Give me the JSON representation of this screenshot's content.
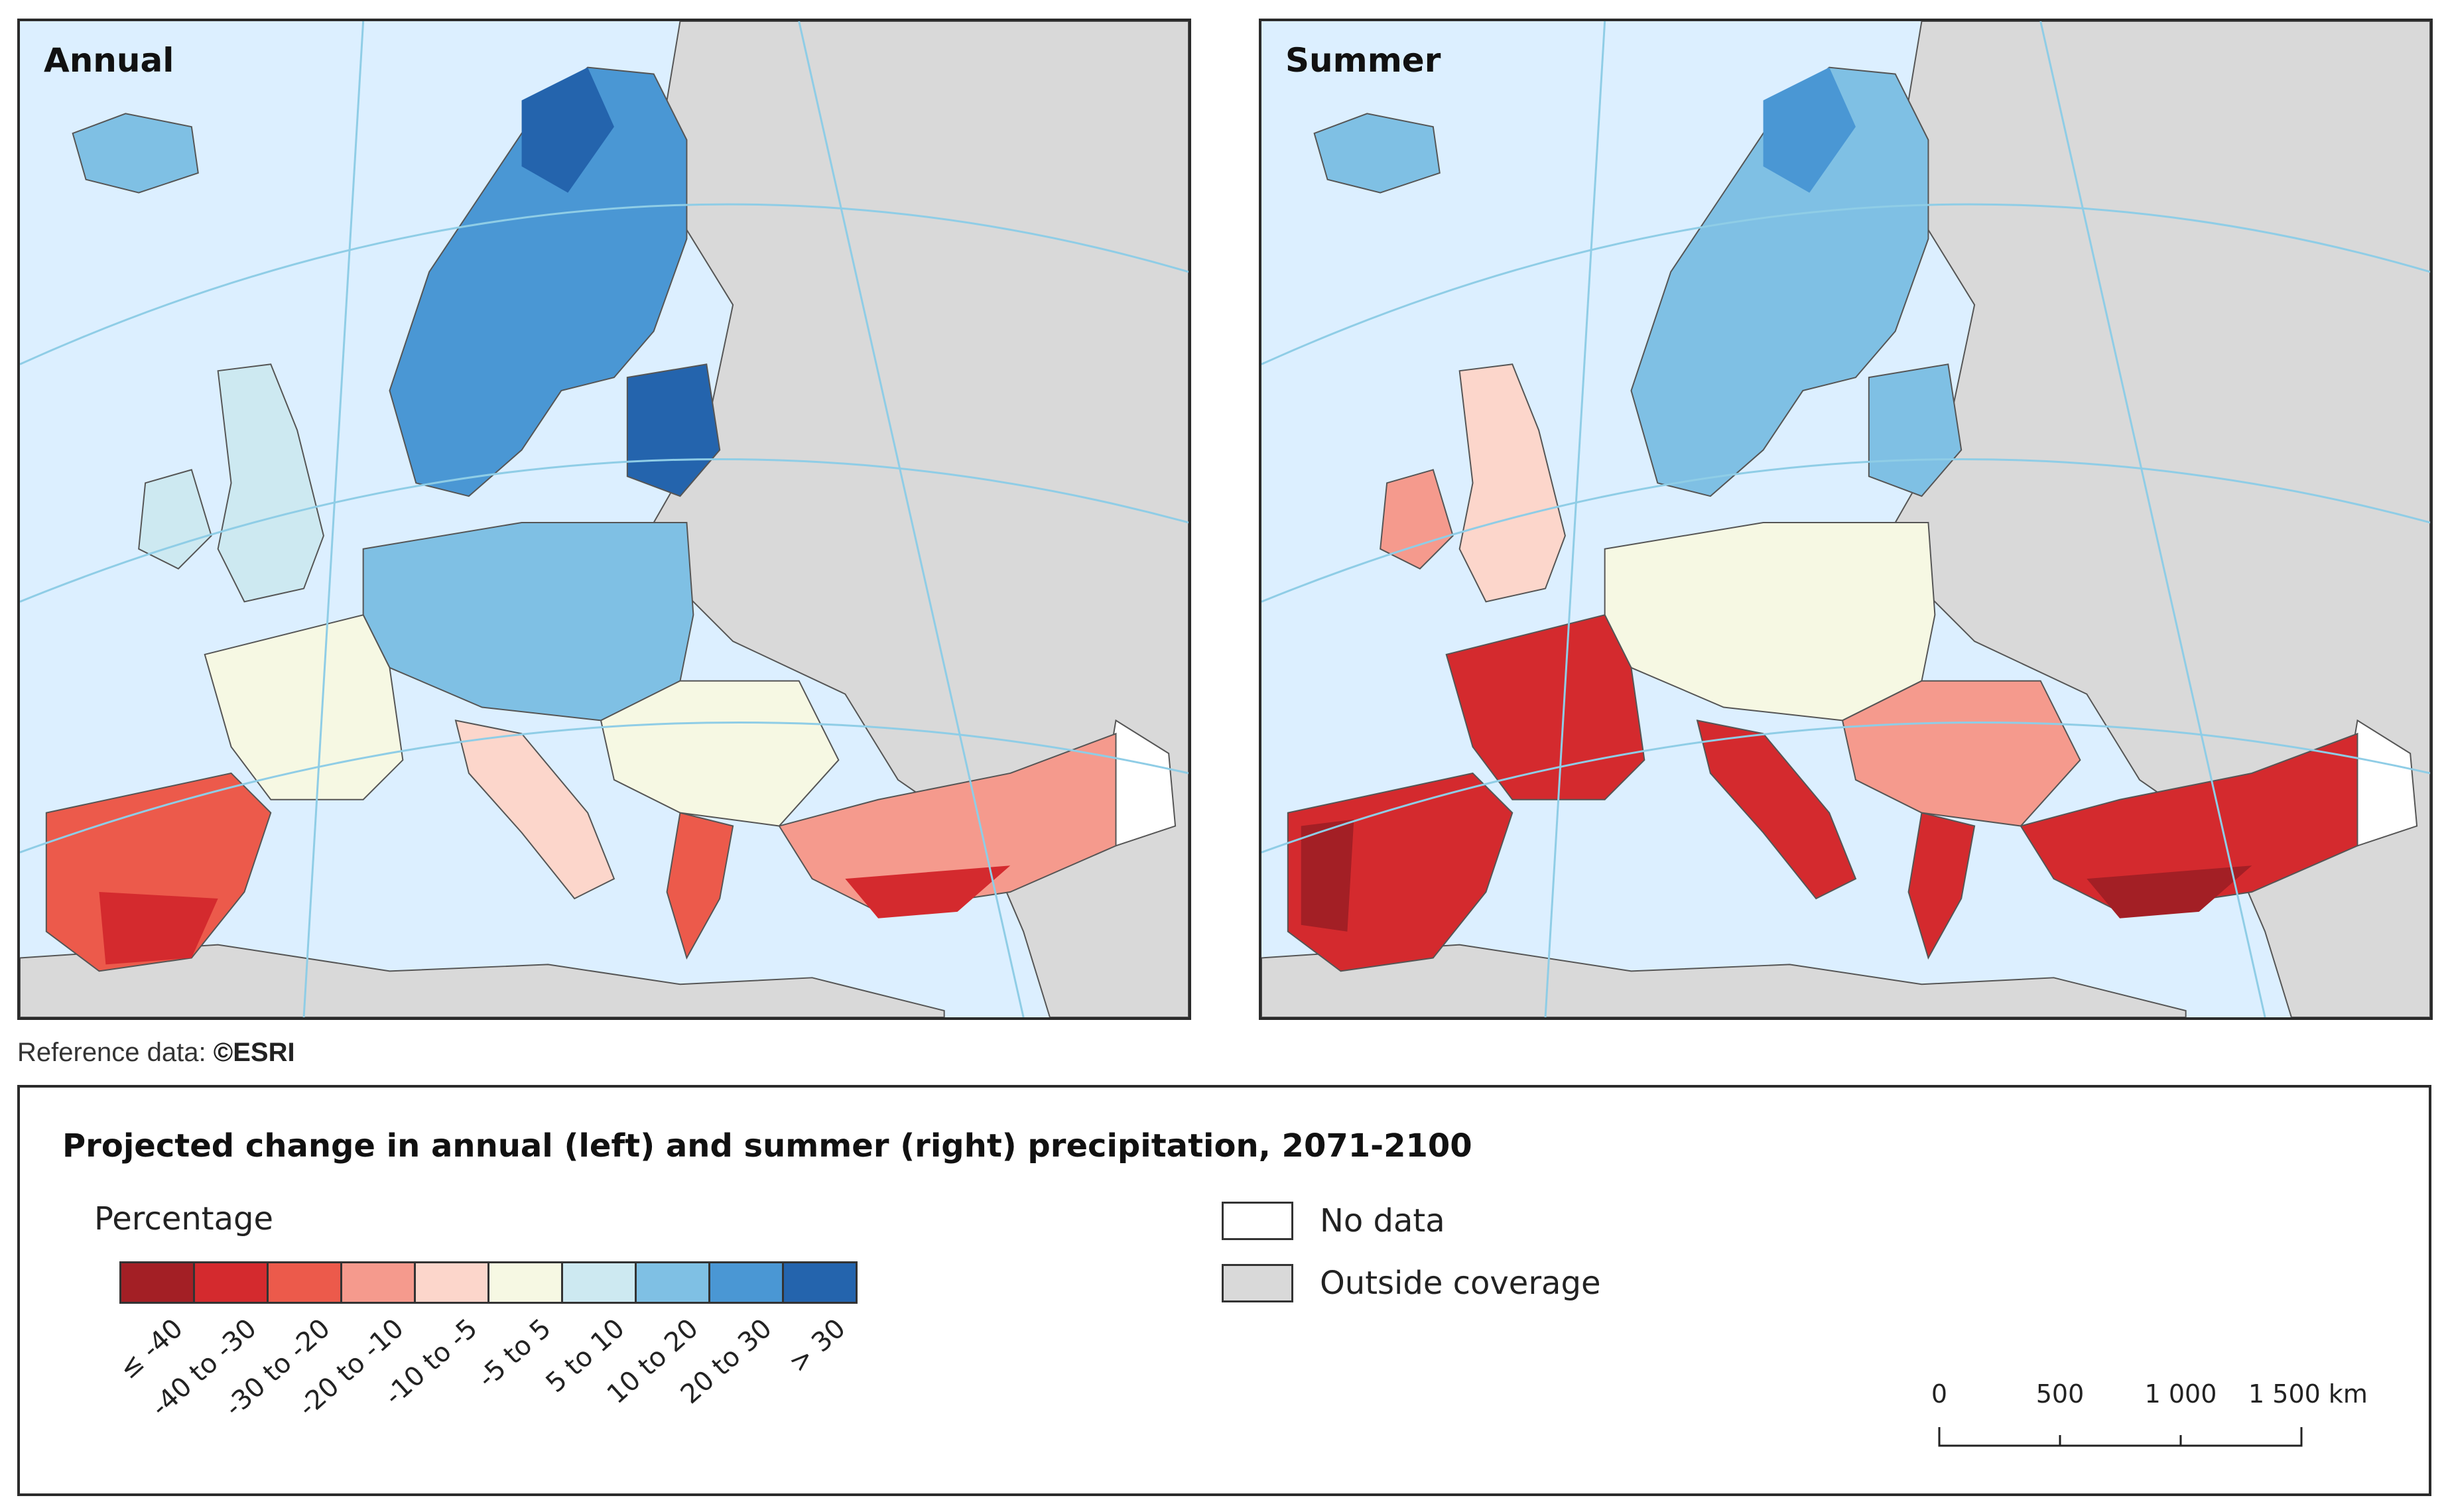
{
  "maps": [
    {
      "title": "Annual"
    },
    {
      "title": "Summer"
    }
  ],
  "reference_note": {
    "label": "Reference data: ",
    "source": "©ESRI"
  },
  "legend": {
    "title": "Projected change in annual (left) and summer (right) precipitation, 2071-2100",
    "subtitle": "Percentage",
    "classes": [
      {
        "label": "≤ -40",
        "color": "#a31f25"
      },
      {
        "label": "-40 to -30",
        "color": "#d42a2e"
      },
      {
        "label": "-30 to -20",
        "color": "#ec5a4b"
      },
      {
        "label": "-20 to -10",
        "color": "#f59a8d"
      },
      {
        "label": "-10 to -5",
        "color": "#fcd6cb"
      },
      {
        "label": "-5 to 5",
        "color": "#f6f8e3"
      },
      {
        "label": "5 to 10",
        "color": "#cde9f1"
      },
      {
        "label": "10 to 20",
        "color": "#7fc0e4"
      },
      {
        "label": "20 to 30",
        "color": "#4a97d4"
      },
      {
        "label": "> 30",
        "color": "#2464ad"
      }
    ],
    "categories": [
      {
        "label": "No data",
        "color": "#ffffff"
      },
      {
        "label": "Outside coverage",
        "color": "#d9d9d9"
      }
    ],
    "scale": {
      "ticks": [
        "0",
        "500",
        "1 000",
        "1 500 km"
      ]
    }
  }
}
